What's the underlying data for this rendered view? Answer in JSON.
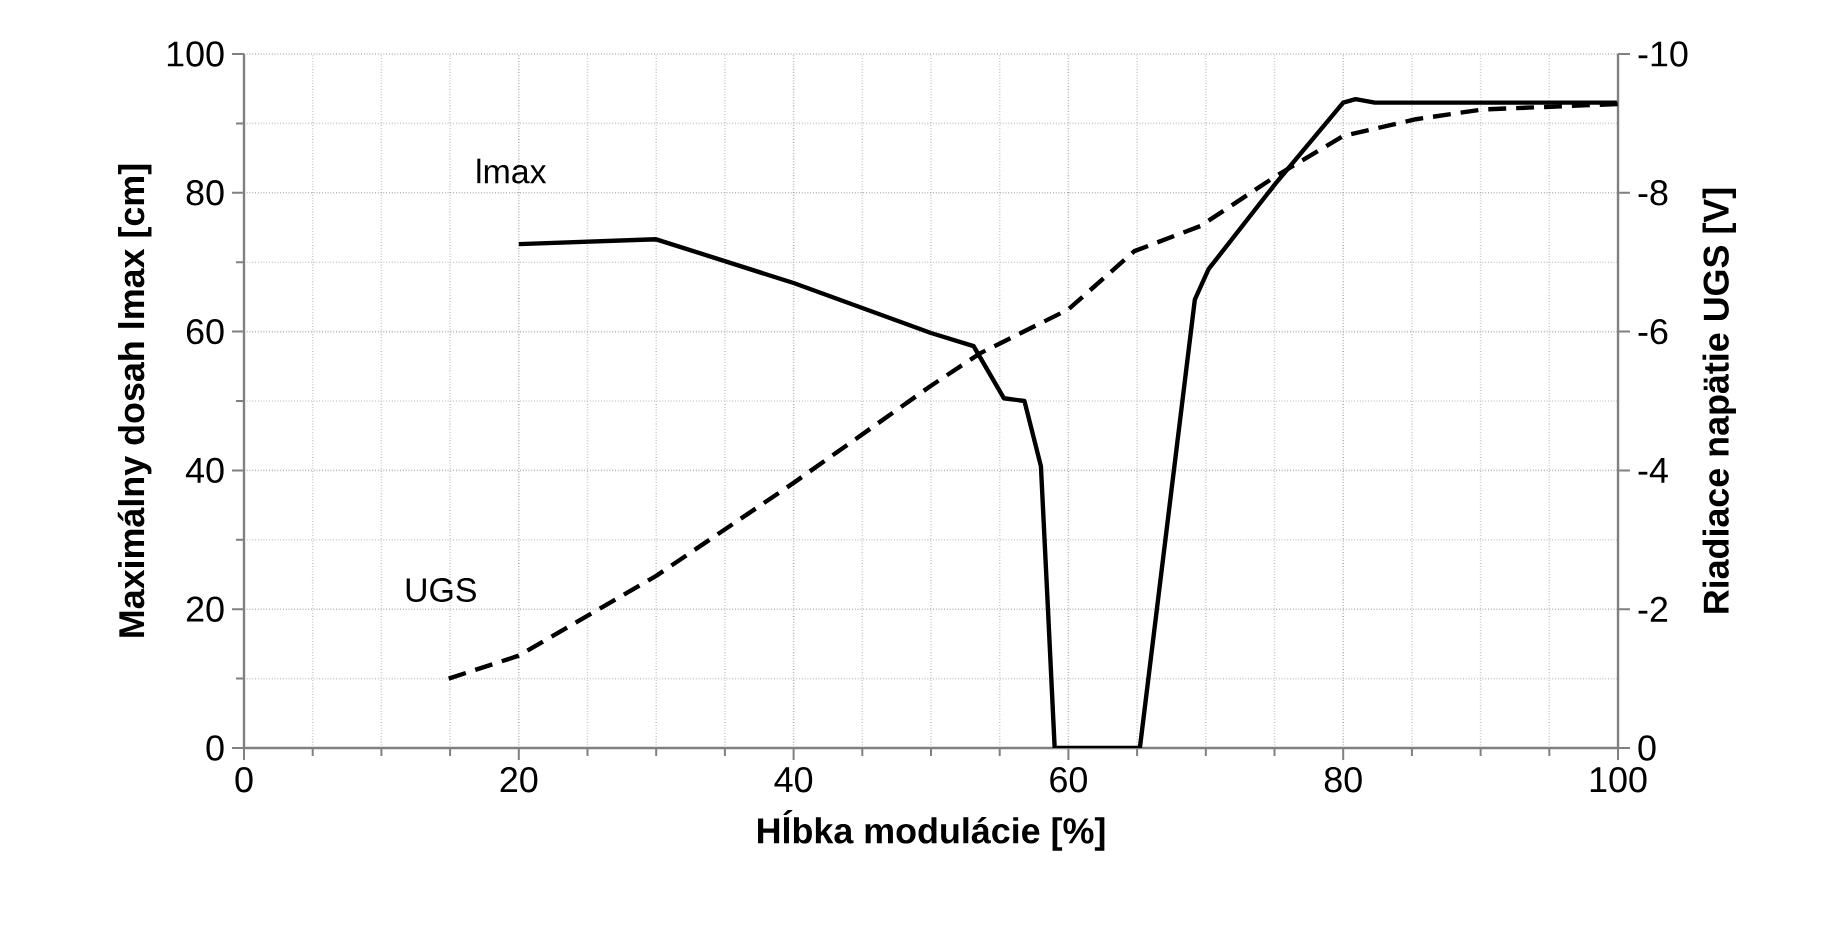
{
  "chart_data": {
    "type": "line",
    "xlabel": "Hĺbka modulácie [%]",
    "ylabel": "Maximálny dosah lmax [cm]",
    "y2label": "Riadiace napätie UGS [V]",
    "xlim": [
      0,
      100
    ],
    "xticks": [
      0,
      20,
      40,
      60,
      80,
      100
    ],
    "ylim": [
      0,
      100
    ],
    "yticks": [
      0,
      20,
      40,
      60,
      80,
      100
    ],
    "y2lim": [
      0,
      -10
    ],
    "y2ticks": [
      0,
      -2,
      -4,
      -6,
      -8,
      -10
    ],
    "grid": true,
    "legend": false,
    "marker": "none",
    "series": [
      {
        "name": "lmax",
        "color": "#000000",
        "line_style": "solid",
        "x": [
          20,
          30,
          40,
          50,
          53.1,
          55.3,
          56.8,
          58.0,
          58.5,
          59.0,
          65.2,
          69.2,
          70.2,
          75.1,
          80.0,
          80.9,
          82.3,
          100
        ],
        "values": [
          72.6,
          73.3,
          67,
          59.8,
          57.9,
          50.4,
          50,
          40.6,
          20.5,
          0,
          0,
          64.6,
          69,
          81.4,
          93,
          93.5,
          93,
          93
        ]
      },
      {
        "name": "UGS",
        "color": "#000000",
        "line_style": "dashed",
        "axis": "y2",
        "x": [
          14.9,
          20,
          30,
          40,
          50,
          53.6,
          60,
          64.8,
          69.6,
          75.1,
          80,
          85.3,
          90.1,
          100
        ],
        "values": [
          -1.0,
          -1.33,
          -2.48,
          -3.82,
          -5.22,
          -5.69,
          -6.32,
          -7.16,
          -7.52,
          -8.24,
          -8.82,
          -9.06,
          -9.2,
          -9.28
        ]
      }
    ]
  }
}
